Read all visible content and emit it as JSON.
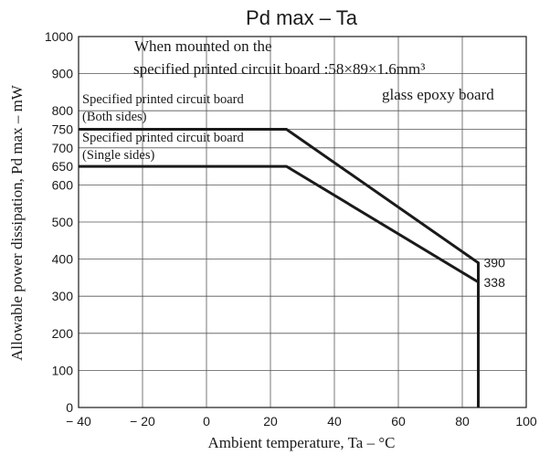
{
  "chart_data": {
    "type": "line",
    "title": "Pd max  –  Ta",
    "xlabel": "Ambient temperature, Ta  –  °C",
    "ylabel": "Allowable power dissipation, Pd max  –  mW",
    "xlim": [
      -40,
      100
    ],
    "ylim": [
      0,
      1000
    ],
    "x_ticks": [
      -40,
      -20,
      0,
      20,
      40,
      60,
      80,
      100
    ],
    "x_tick_labels": [
      "− 40",
      "− 20",
      "0",
      "20",
      "40",
      "60",
      "80",
      "100"
    ],
    "y_ticks": [
      0,
      100,
      200,
      300,
      400,
      500,
      600,
      650,
      700,
      750,
      800,
      900,
      1000
    ],
    "y_tick_labels": [
      "0",
      "100",
      "200",
      "300",
      "400",
      "500",
      "600",
      "650",
      "700",
      "750",
      "800",
      "900",
      "1000"
    ],
    "grid": true,
    "series": [
      {
        "name": "Specified printed circuit board (Both sides)",
        "label_lines": [
          "Specified printed circuit board",
          "(Both sides)"
        ],
        "x": [
          -40,
          25,
          85,
          85
        ],
        "y": [
          750,
          750,
          390,
          0
        ],
        "end_label": "390"
      },
      {
        "name": "Specified printed circuit board (Single sides)",
        "label_lines": [
          "Specified printed circuit board",
          "(Single sides)"
        ],
        "x": [
          -40,
          25,
          85,
          85
        ],
        "y": [
          650,
          650,
          338,
          0
        ],
        "end_label": "338"
      }
    ],
    "annotation": {
      "line1": "When mounted on the",
      "line2": "specified printed circuit board :58×89×1.6mm³",
      "line3": "glass epoxy board"
    }
  },
  "colors": {
    "line": "#1a1a1a",
    "grid": "#555555",
    "axis": "#1a1a1a",
    "text": "#1a1a1a"
  }
}
